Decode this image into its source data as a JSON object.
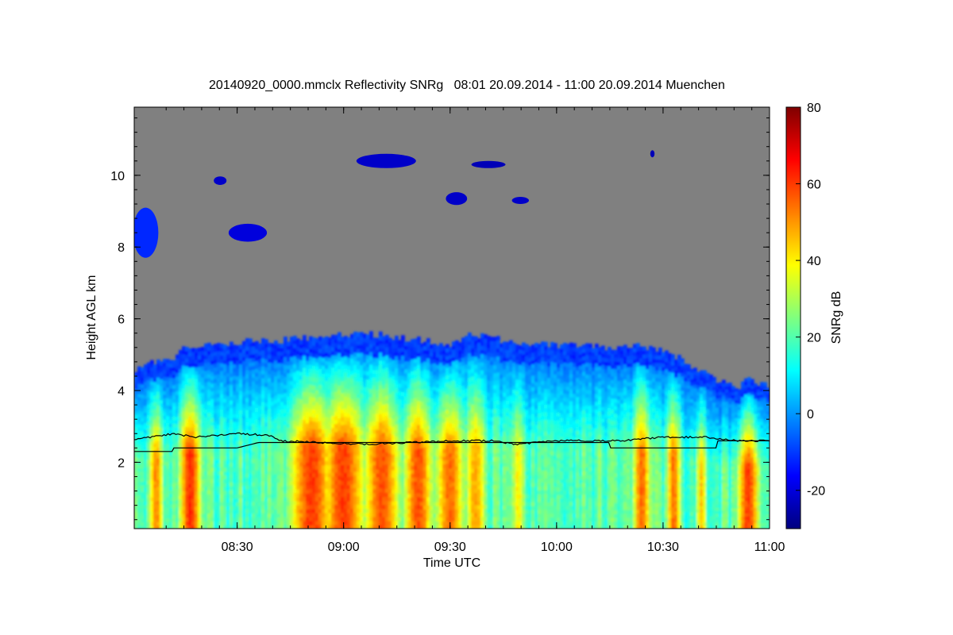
{
  "chart_data": {
    "type": "heatmap",
    "title": "20140920_0000.mmclx Reflectivity SNRg   08:01 20.09.2014 - 11:00 20.09.2014 Muenchen",
    "xlabel": "Time UTC",
    "ylabel": "Height AGL km",
    "colorbar_label": "SNRg dB",
    "x_range": [
      "08:01",
      "11:00"
    ],
    "y_range_km": [
      0.15,
      11.9
    ],
    "colorbar_range_db": [
      -30,
      80
    ],
    "x_ticks": [
      "08:30",
      "09:00",
      "09:30",
      "10:00",
      "10:30",
      "11:00"
    ],
    "y_ticks": [
      "2",
      "4",
      "6",
      "8",
      "10"
    ],
    "colorbar_ticks": [
      "-20",
      "0",
      "20",
      "40",
      "60",
      "80"
    ],
    "no_signal_color": "#808080",
    "colormap": [
      "#00007f",
      "#0000ff",
      "#007fff",
      "#00ffff",
      "#7fff7f",
      "#ffff00",
      "#ff7f00",
      "#ff0000",
      "#7f0000"
    ],
    "echo_top_km": [
      [
        8.02,
        4.6
      ],
      [
        8.1,
        4.8
      ],
      [
        8.2,
        4.9
      ],
      [
        8.25,
        5.3
      ],
      [
        8.33,
        5.2
      ],
      [
        8.5,
        5.35
      ],
      [
        8.7,
        5.4
      ],
      [
        8.9,
        5.5
      ],
      [
        9.1,
        5.6
      ],
      [
        9.3,
        5.45
      ],
      [
        9.5,
        5.3
      ],
      [
        9.6,
        5.55
      ],
      [
        9.75,
        5.4
      ],
      [
        9.9,
        5.3
      ],
      [
        10.1,
        5.25
      ],
      [
        10.25,
        5.2
      ],
      [
        10.4,
        5.25
      ],
      [
        10.55,
        5.0
      ],
      [
        10.65,
        4.6
      ],
      [
        10.75,
        4.3
      ],
      [
        10.85,
        4.1
      ],
      [
        10.9,
        4.3
      ],
      [
        11.0,
        4.1
      ]
    ],
    "line_upper_km": [
      [
        8.02,
        2.65
      ],
      [
        8.1,
        2.7
      ],
      [
        8.2,
        2.8
      ],
      [
        8.3,
        2.7
      ],
      [
        8.5,
        2.8
      ],
      [
        8.65,
        2.75
      ],
      [
        8.7,
        2.6
      ],
      [
        8.9,
        2.55
      ],
      [
        9.1,
        2.5
      ],
      [
        9.3,
        2.55
      ],
      [
        9.5,
        2.6
      ],
      [
        9.7,
        2.6
      ],
      [
        9.8,
        2.5
      ],
      [
        10.0,
        2.6
      ],
      [
        10.3,
        2.6
      ],
      [
        10.5,
        2.7
      ],
      [
        10.7,
        2.7
      ],
      [
        10.85,
        2.6
      ],
      [
        11.0,
        2.6
      ]
    ],
    "line_lower_km": [
      [
        8.02,
        2.3
      ],
      [
        8.2,
        2.3
      ],
      [
        8.2,
        2.4
      ],
      [
        8.5,
        2.4
      ],
      [
        8.6,
        2.55
      ],
      [
        10.25,
        2.55
      ],
      [
        10.25,
        2.4
      ],
      [
        10.75,
        2.4
      ],
      [
        10.75,
        2.6
      ],
      [
        11.0,
        2.6
      ]
    ],
    "strong_columns": [
      {
        "t": 8.28,
        "w": 0.06,
        "v": 62
      },
      {
        "t": 8.12,
        "w": 0.04,
        "v": 52
      },
      {
        "t": 8.85,
        "w": 0.12,
        "v": 60
      },
      {
        "t": 9.0,
        "w": 0.12,
        "v": 60
      },
      {
        "t": 9.18,
        "w": 0.1,
        "v": 58
      },
      {
        "t": 9.35,
        "w": 0.08,
        "v": 58
      },
      {
        "t": 9.5,
        "w": 0.08,
        "v": 55
      },
      {
        "t": 9.62,
        "w": 0.06,
        "v": 48
      },
      {
        "t": 9.82,
        "w": 0.04,
        "v": 40
      },
      {
        "t": 10.4,
        "w": 0.05,
        "v": 55
      },
      {
        "t": 10.55,
        "w": 0.04,
        "v": 55
      },
      {
        "t": 10.68,
        "w": 0.03,
        "v": 45
      },
      {
        "t": 10.9,
        "w": 0.06,
        "v": 60
      }
    ],
    "upper_patches": [
      {
        "t": 8.07,
        "h": 8.4,
        "dt": 0.06,
        "dh": 0.7,
        "v": -12
      },
      {
        "t": 8.55,
        "h": 8.4,
        "dt": 0.09,
        "dh": 0.25,
        "v": -20
      },
      {
        "t": 8.42,
        "h": 9.85,
        "dt": 0.03,
        "dh": 0.12,
        "v": -22
      },
      {
        "t": 9.53,
        "h": 9.35,
        "dt": 0.05,
        "dh": 0.18,
        "v": -22
      },
      {
        "t": 9.83,
        "h": 9.3,
        "dt": 0.04,
        "dh": 0.1,
        "v": -22
      },
      {
        "t": 9.2,
        "h": 10.4,
        "dt": 0.14,
        "dh": 0.2,
        "v": -22
      },
      {
        "t": 9.68,
        "h": 10.3,
        "dt": 0.08,
        "dh": 0.1,
        "v": -24
      },
      {
        "t": 10.45,
        "h": 10.6,
        "dt": 0.01,
        "dh": 0.1,
        "v": -24
      }
    ]
  }
}
